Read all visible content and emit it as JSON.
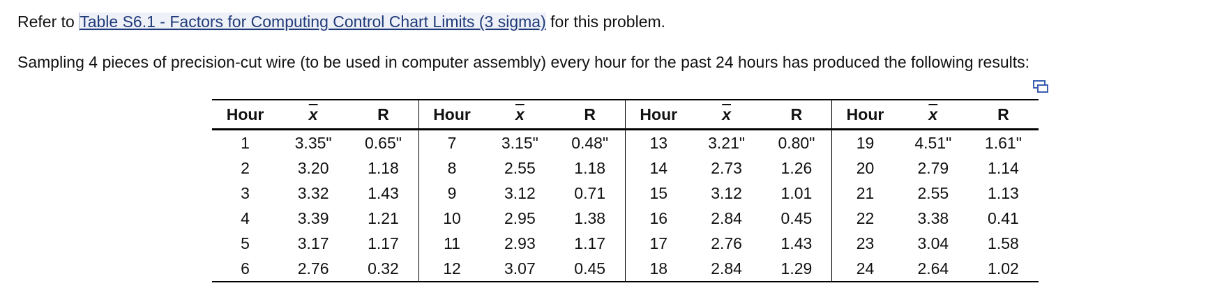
{
  "intro": {
    "before": "Refer to ",
    "link": "Table S6.1 - Factors for Computing Control Chart Limits (3 sigma)",
    "after": " for this problem."
  },
  "problem": "Sampling 4 pieces of precision-cut wire (to be used in computer assembly) every hour for the past 24 hours has produced the following results:",
  "table": {
    "headers": [
      "Hour",
      "x",
      "R",
      "Hour",
      "x",
      "R",
      "Hour",
      "x",
      "R",
      "Hour",
      "x",
      "R"
    ],
    "rows": [
      [
        "1",
        "3.35\"",
        "0.65\"",
        "7",
        "3.15\"",
        "0.48\"",
        "13",
        "3.21\"",
        "0.80\"",
        "19",
        "4.51\"",
        "1.61\""
      ],
      [
        "2",
        "3.20",
        "1.18",
        "8",
        "2.55",
        "1.18",
        "14",
        "2.73",
        "1.26",
        "20",
        "2.79",
        "1.14"
      ],
      [
        "3",
        "3.32",
        "1.43",
        "9",
        "3.12",
        "0.71",
        "15",
        "3.12",
        "1.01",
        "21",
        "2.55",
        "1.13"
      ],
      [
        "4",
        "3.39",
        "1.21",
        "10",
        "2.95",
        "1.38",
        "16",
        "2.84",
        "0.45",
        "22",
        "3.38",
        "0.41"
      ],
      [
        "5",
        "3.17",
        "1.17",
        "11",
        "2.93",
        "1.17",
        "17",
        "2.76",
        "1.43",
        "23",
        "3.04",
        "1.58"
      ],
      [
        "6",
        "2.76",
        "0.32",
        "12",
        "3.07",
        "0.45",
        "18",
        "2.84",
        "1.29",
        "24",
        "2.64",
        "1.02"
      ]
    ]
  }
}
